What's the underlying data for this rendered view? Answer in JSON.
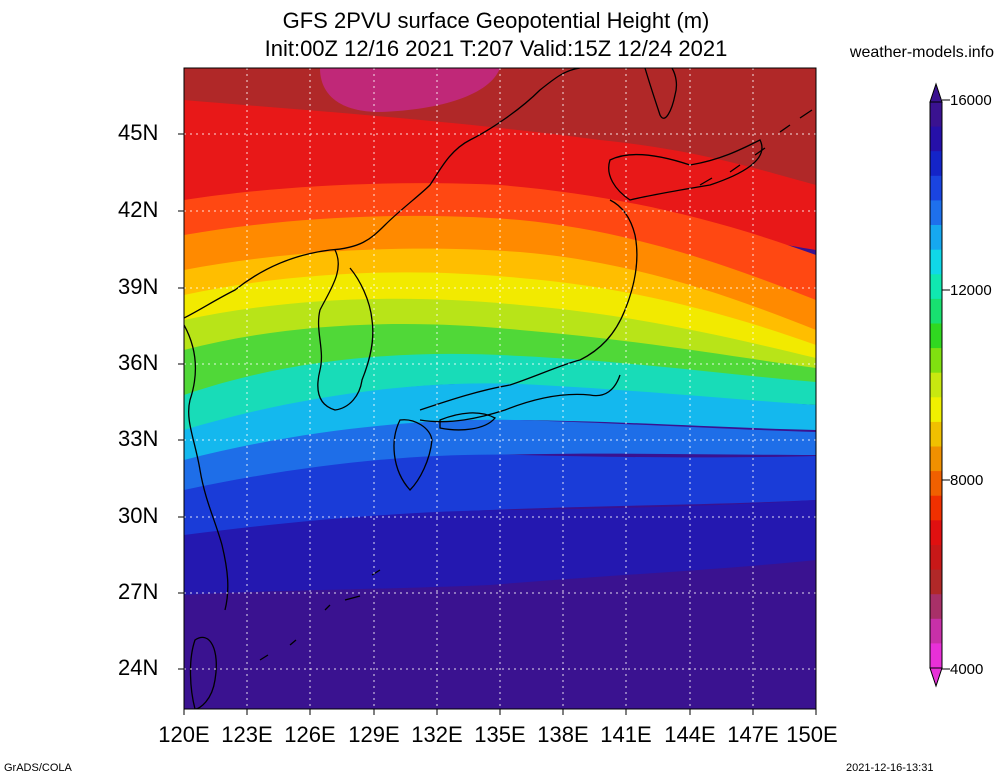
{
  "header": {
    "title_line1": "GFS 2PVU surface Geopotential Height (m)",
    "title_line2": "Init:00Z 12/16 2021 T:207 Valid:15Z 12/24 2021",
    "site": "weather-models.info"
  },
  "axes": {
    "lat_labels": [
      "45N",
      "42N",
      "39N",
      "36N",
      "33N",
      "30N",
      "27N",
      "24N"
    ],
    "lon_labels": [
      "120E",
      "123E",
      "126E",
      "129E",
      "132E",
      "135E",
      "138E",
      "141E",
      "144E",
      "147E",
      "150E"
    ]
  },
  "colorbar": {
    "labels": [
      "16000",
      "12000",
      "8000",
      "4000"
    ],
    "colors": [
      "#3a1290",
      "#2610a8",
      "#1424c8",
      "#1a44e0",
      "#1e70ec",
      "#16a8f0",
      "#10d8e8",
      "#10e8b0",
      "#18e070",
      "#30d820",
      "#80e010",
      "#c8e810",
      "#f0f000",
      "#f0c000",
      "#f09000",
      "#f06000",
      "#f03000",
      "#e01010",
      "#c81818",
      "#b02828",
      "#a83068",
      "#c830a8",
      "#e830d8"
    ]
  },
  "footer": {
    "left": "GrADS/COLA",
    "right": "2021-12-16-13:31"
  },
  "field": {
    "band_colors": [
      "#b82a30",
      "#e81a1a",
      "#ff4a10",
      "#ff7a00",
      "#ffb000",
      "#f8e000",
      "#c8ec10",
      "#70dc20",
      "#30d860",
      "#10e0c8",
      "#10b8f0",
      "#1e6ee8",
      "#1a3cd8",
      "#2418b0",
      "#3a1290"
    ]
  }
}
